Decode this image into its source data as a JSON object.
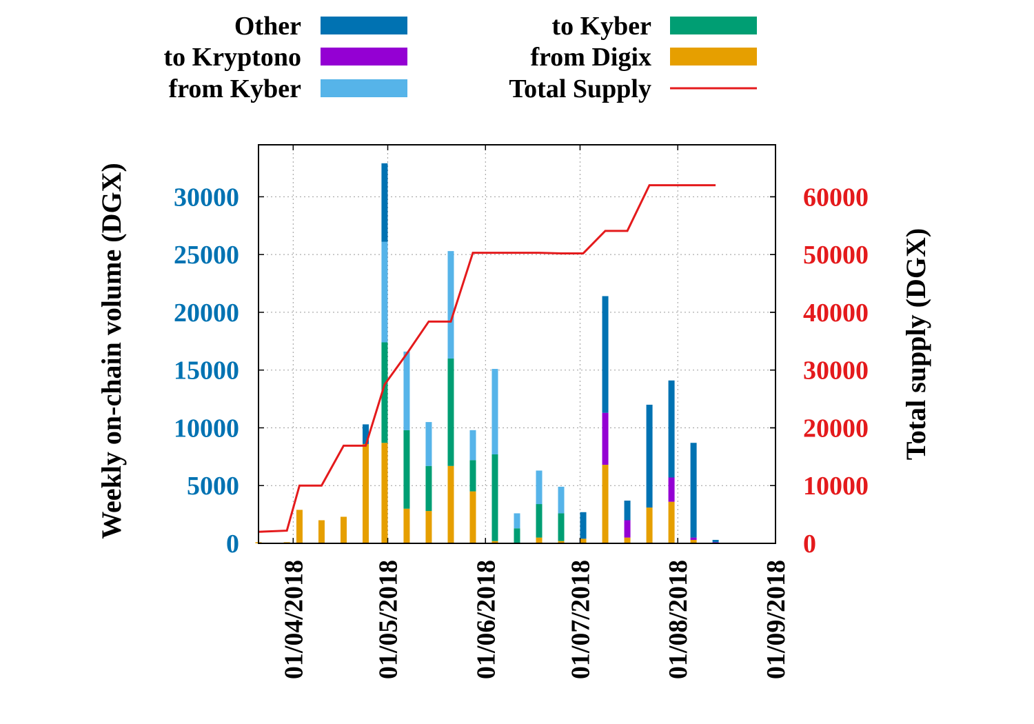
{
  "chart_data": {
    "type": "bar",
    "stacked": true,
    "xlabel": "",
    "ylabel": "Weekly on-chain volume (DGX)",
    "y2label": "Total supply (DGX)",
    "xlim": [
      "2018-03-21",
      "2018-09-01"
    ],
    "ylim": [
      0,
      34500
    ],
    "y2lim": [
      0,
      69000
    ],
    "grid": true,
    "legend_position": "top",
    "x_ticks": [
      "01/04/2018",
      "01/05/2018",
      "01/06/2018",
      "01/07/2018",
      "01/08/2018",
      "01/09/2018"
    ],
    "y_ticks": [
      0,
      5000,
      10000,
      15000,
      20000,
      25000,
      30000
    ],
    "y2_ticks": [
      0,
      10000,
      20000,
      30000,
      40000,
      50000,
      60000
    ],
    "colors": {
      "from_digix": "#e69f00",
      "to_kyber": "#009e73",
      "from_kyber": "#56b4e9",
      "to_kryptono": "#9400d3",
      "other": "#0072b2",
      "total_supply": "#e41a1c",
      "left_axis": "#0072b2",
      "right_axis": "#e41a1c"
    },
    "legend": [
      {
        "key": "other",
        "label": "Other",
        "kind": "box"
      },
      {
        "key": "to_kryptono",
        "label": "to Kryptono",
        "kind": "box"
      },
      {
        "key": "from_kyber",
        "label": "from Kyber",
        "kind": "box"
      },
      {
        "key": "to_kyber",
        "label": "to Kyber",
        "kind": "box"
      },
      {
        "key": "from_digix",
        "label": "from Digix",
        "kind": "box"
      },
      {
        "key": "total_supply",
        "label": "Total Supply",
        "kind": "line"
      }
    ],
    "weeks": [
      "2018-03-21",
      "2018-03-30",
      "2018-04-03",
      "2018-04-10",
      "2018-04-17",
      "2018-04-24",
      "2018-04-30",
      "2018-05-07",
      "2018-05-14",
      "2018-05-21",
      "2018-05-28",
      "2018-06-04",
      "2018-06-11",
      "2018-06-18",
      "2018-06-25",
      "2018-07-02",
      "2018-07-09",
      "2018-07-16",
      "2018-07-23",
      "2018-07-30",
      "2018-08-06",
      "2018-08-13"
    ],
    "stack_order": [
      "from_digix",
      "to_kyber",
      "from_kyber",
      "to_kryptono",
      "other"
    ],
    "series": [
      {
        "key": "from_digix",
        "name": "from Digix",
        "values": [
          100,
          100,
          2900,
          2000,
          2300,
          8600,
          8700,
          3000,
          2800,
          6700,
          4500,
          200,
          0,
          500,
          200,
          400,
          6800,
          500,
          3100,
          3600,
          300,
          0
        ]
      },
      {
        "key": "to_kyber",
        "name": "to Kyber",
        "values": [
          0,
          0,
          0,
          0,
          0,
          0,
          8700,
          6800,
          3900,
          9300,
          2700,
          7500,
          1300,
          2900,
          2400,
          0,
          0,
          0,
          0,
          0,
          0,
          0
        ]
      },
      {
        "key": "from_kyber",
        "name": "from Kyber",
        "values": [
          0,
          0,
          0,
          0,
          0,
          0,
          8700,
          6800,
          3800,
          9300,
          2600,
          7400,
          1300,
          2900,
          2300,
          0,
          0,
          0,
          0,
          0,
          0,
          0
        ]
      },
      {
        "key": "to_kryptono",
        "name": "to Kryptono",
        "values": [
          0,
          0,
          0,
          0,
          0,
          0,
          0,
          0,
          0,
          0,
          0,
          0,
          0,
          0,
          0,
          0,
          4500,
          1500,
          0,
          2100,
          200,
          100
        ]
      },
      {
        "key": "other",
        "name": "Other",
        "values": [
          0,
          0,
          0,
          0,
          0,
          1700,
          6800,
          0,
          0,
          0,
          0,
          0,
          0,
          0,
          0,
          2300,
          10100,
          1700,
          8900,
          8400,
          8200,
          200
        ]
      }
    ],
    "total_supply": {
      "name": "Total Supply",
      "x": [
        "2018-03-21",
        "2018-03-30",
        "2018-04-03",
        "2018-04-10",
        "2018-04-17",
        "2018-04-24",
        "2018-04-30",
        "2018-05-07",
        "2018-05-14",
        "2018-05-21",
        "2018-05-28",
        "2018-06-04",
        "2018-06-11",
        "2018-06-18",
        "2018-06-25",
        "2018-07-02",
        "2018-07-09",
        "2018-07-16",
        "2018-07-23",
        "2018-07-30",
        "2018-08-06",
        "2018-08-13"
      ],
      "values": [
        2000,
        2200,
        10000,
        10000,
        16900,
        16900,
        27500,
        32800,
        38400,
        38400,
        50300,
        50300,
        50300,
        50300,
        50200,
        50200,
        54100,
        54100,
        62000,
        62000,
        62000,
        62000
      ]
    }
  }
}
